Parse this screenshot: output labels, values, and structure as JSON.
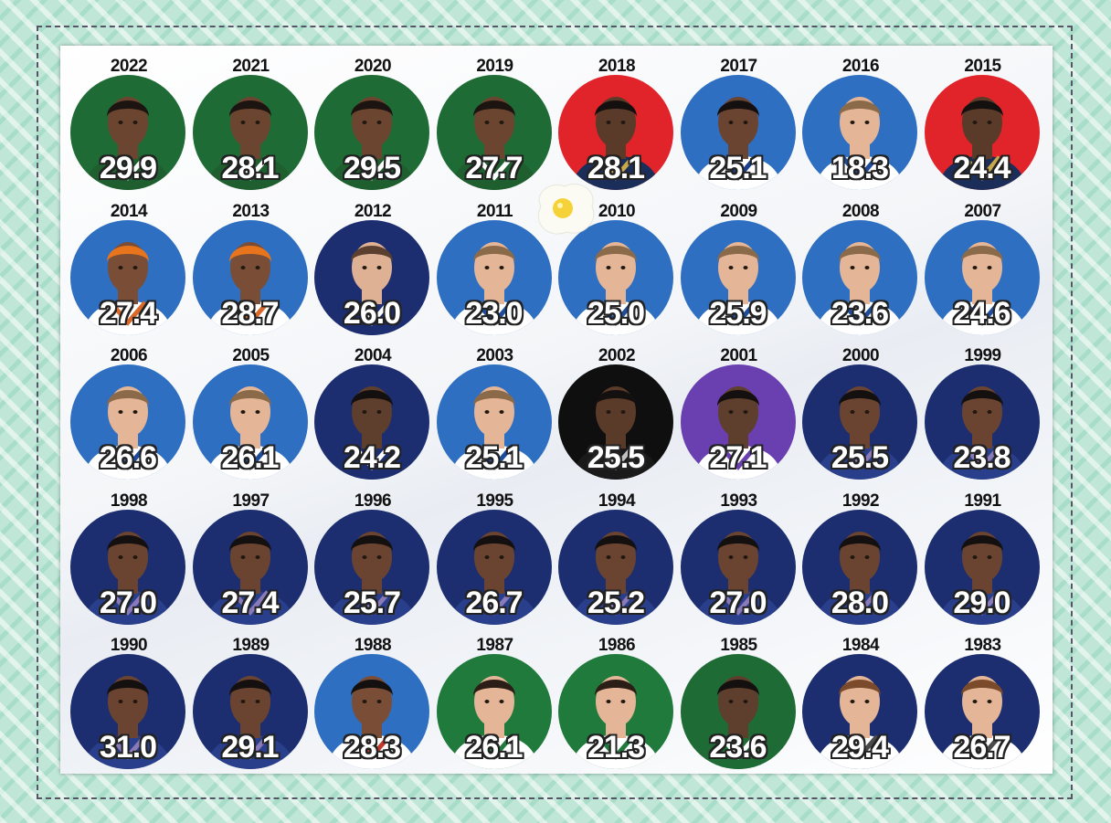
{
  "players": [
    {
      "year": "2022",
      "ppg": "29.9",
      "bg": "#1f6b35",
      "skin": "#6b4530",
      "hair": "#1c1410",
      "jersey": "#1f5e2e",
      "trim": "#ffffff"
    },
    {
      "year": "2021",
      "ppg": "28.1",
      "bg": "#1f6b35",
      "skin": "#6b4530",
      "hair": "#1c1410",
      "jersey": "#1f5e2e",
      "trim": "#ffffff"
    },
    {
      "year": "2020",
      "ppg": "29.5",
      "bg": "#1f6b35",
      "skin": "#6b4530",
      "hair": "#1c1410",
      "jersey": "#1f5e2e",
      "trim": "#ffffff"
    },
    {
      "year": "2019",
      "ppg": "27.7",
      "bg": "#1f6b35",
      "skin": "#6b4530",
      "hair": "#1c1410",
      "jersey": "#1f5e2e",
      "trim": "#ffffff"
    },
    {
      "year": "2018",
      "ppg": "28.1",
      "bg": "#e0242a",
      "skin": "#5a3a28",
      "hair": "#151010",
      "jersey": "#1b2e5a",
      "trim": "#c8a84a"
    },
    {
      "year": "2017",
      "ppg": "25.1",
      "bg": "#2e6fc2",
      "skin": "#6a4430",
      "hair": "#151010",
      "jersey": "#ffffff",
      "trim": "#1b3f8f"
    },
    {
      "year": "2016",
      "ppg": "18.3",
      "bg": "#2e6fc2",
      "skin": "#e4b596",
      "hair": "#8a6a48",
      "jersey": "#ffffff",
      "trim": "#1f4c9a"
    },
    {
      "year": "2015",
      "ppg": "24.4",
      "bg": "#e0242a",
      "skin": "#5a3a28",
      "hair": "#151010",
      "jersey": "#1b2e5a",
      "trim": "#c8a84a"
    },
    {
      "year": "2014",
      "ppg": "27.4",
      "bg": "#2e6fc2",
      "skin": "#7a4e36",
      "hair": "#e8751c",
      "jersey": "#ffffff",
      "trim": "#d8692a"
    },
    {
      "year": "2013",
      "ppg": "28.7",
      "bg": "#2e6fc2",
      "skin": "#7a4e36",
      "hair": "#e8751c",
      "jersey": "#ffffff",
      "trim": "#d8692a"
    },
    {
      "year": "2012",
      "ppg": "26.0",
      "bg": "#1c2e70",
      "skin": "#deb094",
      "hair": "#5b4030",
      "jersey": "#1c2e70",
      "trim": "#ffffff"
    },
    {
      "year": "2011",
      "ppg": "23.0",
      "bg": "#2e6fc2",
      "skin": "#e4b596",
      "hair": "#8a6a48",
      "jersey": "#ffffff",
      "trim": "#1f4c9a"
    },
    {
      "year": "2010",
      "ppg": "25.0",
      "bg": "#2e6fc2",
      "skin": "#e4b596",
      "hair": "#8a6a48",
      "jersey": "#ffffff",
      "trim": "#1f4c9a"
    },
    {
      "year": "2009",
      "ppg": "25.9",
      "bg": "#2e6fc2",
      "skin": "#e4b596",
      "hair": "#8a6a48",
      "jersey": "#ffffff",
      "trim": "#1f4c9a"
    },
    {
      "year": "2008",
      "ppg": "23.6",
      "bg": "#2e6fc2",
      "skin": "#e4b596",
      "hair": "#8a6a48",
      "jersey": "#ffffff",
      "trim": "#1f4c9a"
    },
    {
      "year": "2007",
      "ppg": "24.6",
      "bg": "#2e6fc2",
      "skin": "#e4b596",
      "hair": "#8a6a48",
      "jersey": "#ffffff",
      "trim": "#1f4c9a"
    },
    {
      "year": "2006",
      "ppg": "26.6",
      "bg": "#2e6fc2",
      "skin": "#e4b596",
      "hair": "#8a6a48",
      "jersey": "#ffffff",
      "trim": "#1f4c9a"
    },
    {
      "year": "2005",
      "ppg": "26.1",
      "bg": "#2e6fc2",
      "skin": "#e4b596",
      "hair": "#8a6a48",
      "jersey": "#ffffff",
      "trim": "#1f4c9a"
    },
    {
      "year": "2004",
      "ppg": "24.2",
      "bg": "#1c2e70",
      "skin": "#5e3e2c",
      "hair": "#151010",
      "jersey": "#1c2e70",
      "trim": "#ffffff"
    },
    {
      "year": "2003",
      "ppg": "25.1",
      "bg": "#2e6fc2",
      "skin": "#e4b596",
      "hair": "#8a6a48",
      "jersey": "#ffffff",
      "trim": "#1f4c9a"
    },
    {
      "year": "2002",
      "ppg": "25.5",
      "bg": "#0f0f0f",
      "skin": "#5a3a28",
      "hair": "#151010",
      "jersey": "#1a1a1a",
      "trim": "#c0c0c0"
    },
    {
      "year": "2001",
      "ppg": "27.1",
      "bg": "#6a3fb0",
      "skin": "#5e3e2c",
      "hair": "#151010",
      "jersey": "#ffffff",
      "trim": "#6a3fb0"
    },
    {
      "year": "2000",
      "ppg": "25.5",
      "bg": "#1c2e70",
      "skin": "#6a4430",
      "hair": "#151010",
      "jersey": "#2a3f8c",
      "trim": "#8a7ab8"
    },
    {
      "year": "1999",
      "ppg": "23.8",
      "bg": "#1c2e70",
      "skin": "#6a4430",
      "hair": "#151010",
      "jersey": "#2a3f8c",
      "trim": "#8a7ab8"
    },
    {
      "year": "1998",
      "ppg": "27.0",
      "bg": "#1c2e70",
      "skin": "#6a4430",
      "hair": "#151010",
      "jersey": "#2a3f8c",
      "trim": "#8a7ab8"
    },
    {
      "year": "1997",
      "ppg": "27.4",
      "bg": "#1c2e70",
      "skin": "#6a4430",
      "hair": "#151010",
      "jersey": "#2a3f8c",
      "trim": "#8a7ab8"
    },
    {
      "year": "1996",
      "ppg": "25.7",
      "bg": "#1c2e70",
      "skin": "#6a4430",
      "hair": "#151010",
      "jersey": "#2a3f8c",
      "trim": "#8a7ab8"
    },
    {
      "year": "1995",
      "ppg": "26.7",
      "bg": "#1c2e70",
      "skin": "#6a4430",
      "hair": "#151010",
      "jersey": "#2a3f8c",
      "trim": "#8a7ab8"
    },
    {
      "year": "1994",
      "ppg": "25.2",
      "bg": "#1c2e70",
      "skin": "#6a4430",
      "hair": "#151010",
      "jersey": "#2a3f8c",
      "trim": "#8a7ab8"
    },
    {
      "year": "1993",
      "ppg": "27.0",
      "bg": "#1c2e70",
      "skin": "#6a4430",
      "hair": "#151010",
      "jersey": "#2a3f8c",
      "trim": "#8a7ab8"
    },
    {
      "year": "1992",
      "ppg": "28.0",
      "bg": "#1c2e70",
      "skin": "#6a4430",
      "hair": "#151010",
      "jersey": "#2a3f8c",
      "trim": "#8a7ab8"
    },
    {
      "year": "1991",
      "ppg": "29.0",
      "bg": "#1c2e70",
      "skin": "#6a4430",
      "hair": "#151010",
      "jersey": "#2a3f8c",
      "trim": "#8a7ab8"
    },
    {
      "year": "1990",
      "ppg": "31.0",
      "bg": "#1c2e70",
      "skin": "#6a4430",
      "hair": "#151010",
      "jersey": "#2a3f8c",
      "trim": "#8a7ab8"
    },
    {
      "year": "1989",
      "ppg": "29.1",
      "bg": "#1c2e70",
      "skin": "#6a4430",
      "hair": "#151010",
      "jersey": "#2a3f8c",
      "trim": "#8a7ab8"
    },
    {
      "year": "1988",
      "ppg": "28.3",
      "bg": "#2e6fc2",
      "skin": "#7a4e36",
      "hair": "#151010",
      "jersey": "#ffffff",
      "trim": "#c0392b"
    },
    {
      "year": "1987",
      "ppg": "26.1",
      "bg": "#1f7a3c",
      "skin": "#e4b596",
      "hair": "#2a1e16",
      "jersey": "#ffffff",
      "trim": "#1f7a3c"
    },
    {
      "year": "1986",
      "ppg": "21.3",
      "bg": "#1f7a3c",
      "skin": "#e4b596",
      "hair": "#2a1e16",
      "jersey": "#ffffff",
      "trim": "#1f7a3c"
    },
    {
      "year": "1985",
      "ppg": "23.6",
      "bg": "#1f6b35",
      "skin": "#5e3e2c",
      "hair": "#151010",
      "jersey": "#1f6b35",
      "trim": "#ffffff"
    },
    {
      "year": "1984",
      "ppg": "29.4",
      "bg": "#1c2e70",
      "skin": "#e4b596",
      "hair": "#7a4a2a",
      "jersey": "#ffffff",
      "trim": "#4a4a4a"
    },
    {
      "year": "1983",
      "ppg": "26.7",
      "bg": "#1c2e70",
      "skin": "#e4b596",
      "hair": "#7a4a2a",
      "jersey": "#ffffff",
      "trim": "#4a4a4a"
    }
  ]
}
